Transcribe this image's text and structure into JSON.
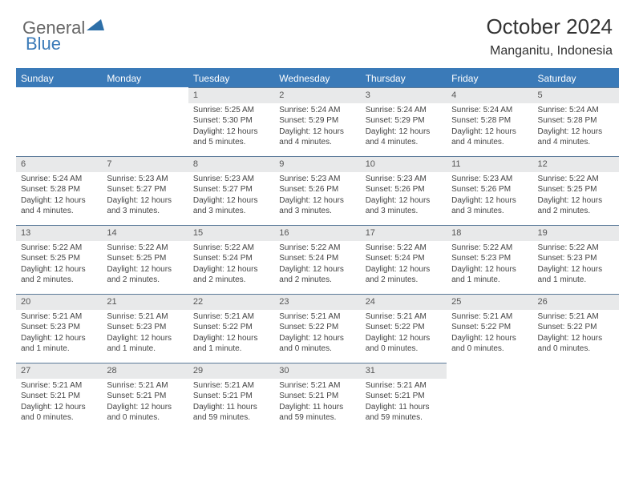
{
  "brand": {
    "part1": "General",
    "part2": "Blue",
    "logo_color": "#2d6fa8"
  },
  "header": {
    "month_title": "October 2024",
    "location": "Manganitu, Indonesia"
  },
  "colors": {
    "header_bg": "#3a7ab8",
    "header_text": "#ffffff",
    "daynum_bg": "#e8e9ea",
    "row_divider": "#5b7a99",
    "text": "#444444"
  },
  "fonts": {
    "title_size": 26,
    "location_size": 16,
    "dayhead_size": 12,
    "cell_size": 10
  },
  "day_headers": [
    "Sunday",
    "Monday",
    "Tuesday",
    "Wednesday",
    "Thursday",
    "Friday",
    "Saturday"
  ],
  "weeks": [
    [
      {
        "n": "",
        "sunrise": "",
        "sunset": "",
        "daylight": ""
      },
      {
        "n": "",
        "sunrise": "",
        "sunset": "",
        "daylight": ""
      },
      {
        "n": "1",
        "sunrise": "Sunrise: 5:25 AM",
        "sunset": "Sunset: 5:30 PM",
        "daylight": "Daylight: 12 hours and 5 minutes."
      },
      {
        "n": "2",
        "sunrise": "Sunrise: 5:24 AM",
        "sunset": "Sunset: 5:29 PM",
        "daylight": "Daylight: 12 hours and 4 minutes."
      },
      {
        "n": "3",
        "sunrise": "Sunrise: 5:24 AM",
        "sunset": "Sunset: 5:29 PM",
        "daylight": "Daylight: 12 hours and 4 minutes."
      },
      {
        "n": "4",
        "sunrise": "Sunrise: 5:24 AM",
        "sunset": "Sunset: 5:28 PM",
        "daylight": "Daylight: 12 hours and 4 minutes."
      },
      {
        "n": "5",
        "sunrise": "Sunrise: 5:24 AM",
        "sunset": "Sunset: 5:28 PM",
        "daylight": "Daylight: 12 hours and 4 minutes."
      }
    ],
    [
      {
        "n": "6",
        "sunrise": "Sunrise: 5:24 AM",
        "sunset": "Sunset: 5:28 PM",
        "daylight": "Daylight: 12 hours and 4 minutes."
      },
      {
        "n": "7",
        "sunrise": "Sunrise: 5:23 AM",
        "sunset": "Sunset: 5:27 PM",
        "daylight": "Daylight: 12 hours and 3 minutes."
      },
      {
        "n": "8",
        "sunrise": "Sunrise: 5:23 AM",
        "sunset": "Sunset: 5:27 PM",
        "daylight": "Daylight: 12 hours and 3 minutes."
      },
      {
        "n": "9",
        "sunrise": "Sunrise: 5:23 AM",
        "sunset": "Sunset: 5:26 PM",
        "daylight": "Daylight: 12 hours and 3 minutes."
      },
      {
        "n": "10",
        "sunrise": "Sunrise: 5:23 AM",
        "sunset": "Sunset: 5:26 PM",
        "daylight": "Daylight: 12 hours and 3 minutes."
      },
      {
        "n": "11",
        "sunrise": "Sunrise: 5:23 AM",
        "sunset": "Sunset: 5:26 PM",
        "daylight": "Daylight: 12 hours and 3 minutes."
      },
      {
        "n": "12",
        "sunrise": "Sunrise: 5:22 AM",
        "sunset": "Sunset: 5:25 PM",
        "daylight": "Daylight: 12 hours and 2 minutes."
      }
    ],
    [
      {
        "n": "13",
        "sunrise": "Sunrise: 5:22 AM",
        "sunset": "Sunset: 5:25 PM",
        "daylight": "Daylight: 12 hours and 2 minutes."
      },
      {
        "n": "14",
        "sunrise": "Sunrise: 5:22 AM",
        "sunset": "Sunset: 5:25 PM",
        "daylight": "Daylight: 12 hours and 2 minutes."
      },
      {
        "n": "15",
        "sunrise": "Sunrise: 5:22 AM",
        "sunset": "Sunset: 5:24 PM",
        "daylight": "Daylight: 12 hours and 2 minutes."
      },
      {
        "n": "16",
        "sunrise": "Sunrise: 5:22 AM",
        "sunset": "Sunset: 5:24 PM",
        "daylight": "Daylight: 12 hours and 2 minutes."
      },
      {
        "n": "17",
        "sunrise": "Sunrise: 5:22 AM",
        "sunset": "Sunset: 5:24 PM",
        "daylight": "Daylight: 12 hours and 2 minutes."
      },
      {
        "n": "18",
        "sunrise": "Sunrise: 5:22 AM",
        "sunset": "Sunset: 5:23 PM",
        "daylight": "Daylight: 12 hours and 1 minute."
      },
      {
        "n": "19",
        "sunrise": "Sunrise: 5:22 AM",
        "sunset": "Sunset: 5:23 PM",
        "daylight": "Daylight: 12 hours and 1 minute."
      }
    ],
    [
      {
        "n": "20",
        "sunrise": "Sunrise: 5:21 AM",
        "sunset": "Sunset: 5:23 PM",
        "daylight": "Daylight: 12 hours and 1 minute."
      },
      {
        "n": "21",
        "sunrise": "Sunrise: 5:21 AM",
        "sunset": "Sunset: 5:23 PM",
        "daylight": "Daylight: 12 hours and 1 minute."
      },
      {
        "n": "22",
        "sunrise": "Sunrise: 5:21 AM",
        "sunset": "Sunset: 5:22 PM",
        "daylight": "Daylight: 12 hours and 1 minute."
      },
      {
        "n": "23",
        "sunrise": "Sunrise: 5:21 AM",
        "sunset": "Sunset: 5:22 PM",
        "daylight": "Daylight: 12 hours and 0 minutes."
      },
      {
        "n": "24",
        "sunrise": "Sunrise: 5:21 AM",
        "sunset": "Sunset: 5:22 PM",
        "daylight": "Daylight: 12 hours and 0 minutes."
      },
      {
        "n": "25",
        "sunrise": "Sunrise: 5:21 AM",
        "sunset": "Sunset: 5:22 PM",
        "daylight": "Daylight: 12 hours and 0 minutes."
      },
      {
        "n": "26",
        "sunrise": "Sunrise: 5:21 AM",
        "sunset": "Sunset: 5:22 PM",
        "daylight": "Daylight: 12 hours and 0 minutes."
      }
    ],
    [
      {
        "n": "27",
        "sunrise": "Sunrise: 5:21 AM",
        "sunset": "Sunset: 5:21 PM",
        "daylight": "Daylight: 12 hours and 0 minutes."
      },
      {
        "n": "28",
        "sunrise": "Sunrise: 5:21 AM",
        "sunset": "Sunset: 5:21 PM",
        "daylight": "Daylight: 12 hours and 0 minutes."
      },
      {
        "n": "29",
        "sunrise": "Sunrise: 5:21 AM",
        "sunset": "Sunset: 5:21 PM",
        "daylight": "Daylight: 11 hours and 59 minutes."
      },
      {
        "n": "30",
        "sunrise": "Sunrise: 5:21 AM",
        "sunset": "Sunset: 5:21 PM",
        "daylight": "Daylight: 11 hours and 59 minutes."
      },
      {
        "n": "31",
        "sunrise": "Sunrise: 5:21 AM",
        "sunset": "Sunset: 5:21 PM",
        "daylight": "Daylight: 11 hours and 59 minutes."
      },
      {
        "n": "",
        "sunrise": "",
        "sunset": "",
        "daylight": ""
      },
      {
        "n": "",
        "sunrise": "",
        "sunset": "",
        "daylight": ""
      }
    ]
  ]
}
